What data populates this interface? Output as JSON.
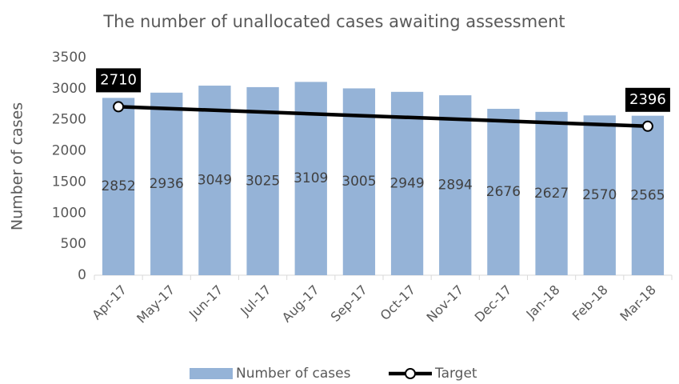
{
  "chart_data": {
    "type": "bar_line",
    "title": "The number of unallocated cases awaiting assessment",
    "y_label": "Number of cases",
    "categories": [
      "Apr-17",
      "May-17",
      "Jun-17",
      "Jul-17",
      "Aug-17",
      "Sep-17",
      "Oct-17",
      "Nov-17",
      "Dec-17",
      "Jan-18",
      "Feb-18",
      "Mar-18"
    ],
    "series": [
      {
        "name": "Number of cases",
        "color": "#95b3d7",
        "values": [
          2852,
          2936,
          3049,
          3025,
          3109,
          3005,
          2949,
          2894,
          2676,
          2627,
          2570,
          2565
        ]
      },
      {
        "name": "Target",
        "color": "#000000",
        "x": [
          "Apr-17",
          "Mar-18"
        ],
        "values": [
          2710,
          2396
        ]
      }
    ],
    "ylim": [
      0,
      3500
    ],
    "yticks": [
      0,
      500,
      1000,
      1500,
      2000,
      2500,
      3000,
      3500
    ],
    "legend": "bottom"
  }
}
